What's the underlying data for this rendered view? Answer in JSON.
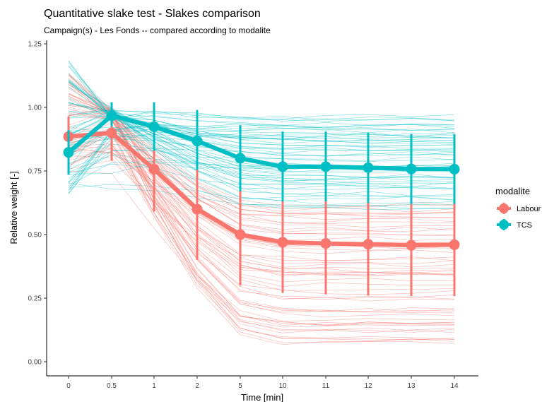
{
  "chart_data": {
    "type": "line",
    "title": "Quantitative slake test - Slakes comparison",
    "subtitle": "Campaign(s) -  Les Fonds -- compared according to modalite",
    "xlabel": "Time [min]",
    "ylabel": "Relative weight [-]",
    "categories": [
      "0",
      "0.5",
      "1",
      "2",
      "5",
      "10",
      "11",
      "12",
      "13",
      "14"
    ],
    "yticks": [
      "0.00",
      "0.25",
      "0.50",
      "0.75",
      "1.00",
      "1.25"
    ],
    "ylim": [
      0,
      1.25
    ],
    "grid": false,
    "legend": {
      "title": "modalite",
      "position": "right"
    },
    "series": [
      {
        "name": "Labour",
        "color": "#F8766D",
        "mean": [
          0.885,
          0.9,
          0.757,
          0.6,
          0.5,
          0.47,
          0.465,
          0.462,
          0.458,
          0.46
        ],
        "lower": [
          0.8,
          0.79,
          0.59,
          0.4,
          0.3,
          0.27,
          0.265,
          0.26,
          0.258,
          0.258
        ],
        "upper": [
          0.965,
          1.0,
          0.93,
          0.8,
          0.7,
          0.68,
          0.67,
          0.665,
          0.66,
          0.66
        ]
      },
      {
        "name": "TCS",
        "color": "#00BFC4",
        "mean": [
          0.823,
          0.967,
          0.924,
          0.868,
          0.8,
          0.767,
          0.767,
          0.763,
          0.758,
          0.757
        ],
        "lower": [
          0.735,
          0.925,
          0.83,
          0.755,
          0.67,
          0.63,
          0.63,
          0.625,
          0.62,
          0.62
        ],
        "upper": [
          0.91,
          1.02,
          1.02,
          0.99,
          0.93,
          0.905,
          0.905,
          0.9,
          0.895,
          0.895
        ]
      }
    ],
    "individual_range": {
      "Labour": {
        "start": [
          0.72,
          1.14
        ],
        "end": [
          0.07,
          0.66
        ]
      },
      "TCS": {
        "start": [
          0.64,
          1.2
        ],
        "end": [
          0.6,
          0.97
        ]
      }
    }
  }
}
